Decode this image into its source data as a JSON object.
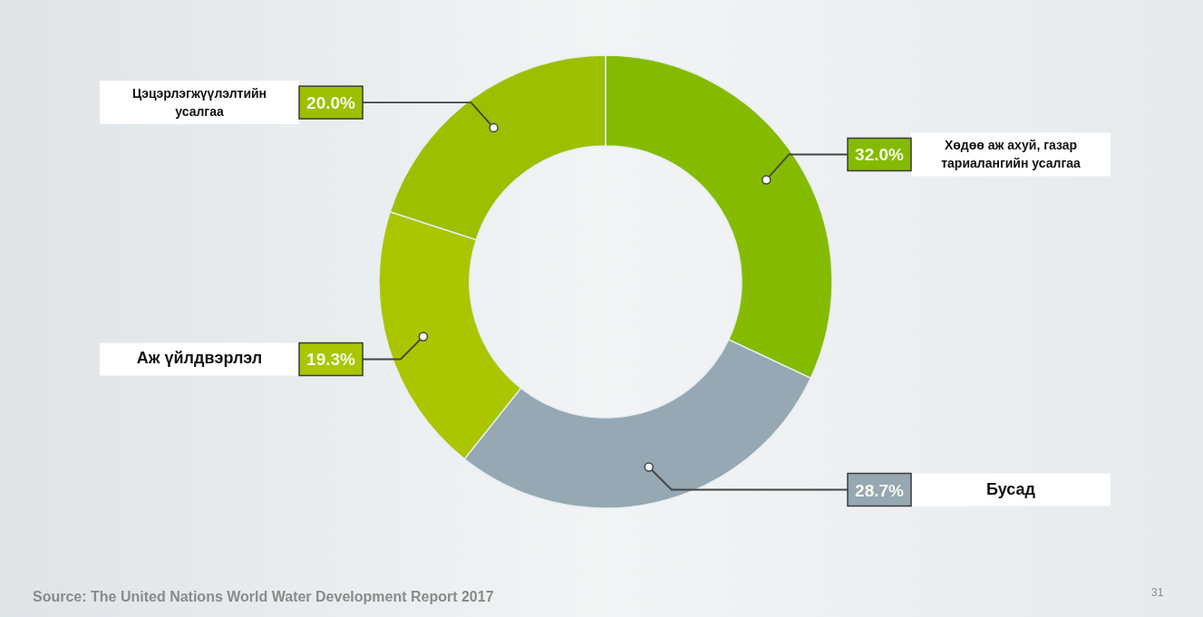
{
  "chart_data": {
    "type": "donut",
    "categories": [
      "Хөдөө аж ахуй, газар тариалангийн усалгаа",
      "Бусад",
      "Аж үйлдвэрлэл",
      "Цэцэрлэгжүүлэлтийн усалгаа"
    ],
    "values": [
      32.0,
      28.7,
      19.3,
      20.0
    ],
    "value_labels": [
      "32.0%",
      "28.7%",
      "19.3%",
      "20.0%"
    ],
    "colors": [
      "#84bb00",
      "#95a8b3",
      "#a9c600",
      "#9cbf00"
    ],
    "annotations": [
      "Source: The United Nations World Water Development Report 2017",
      "31"
    ]
  }
}
